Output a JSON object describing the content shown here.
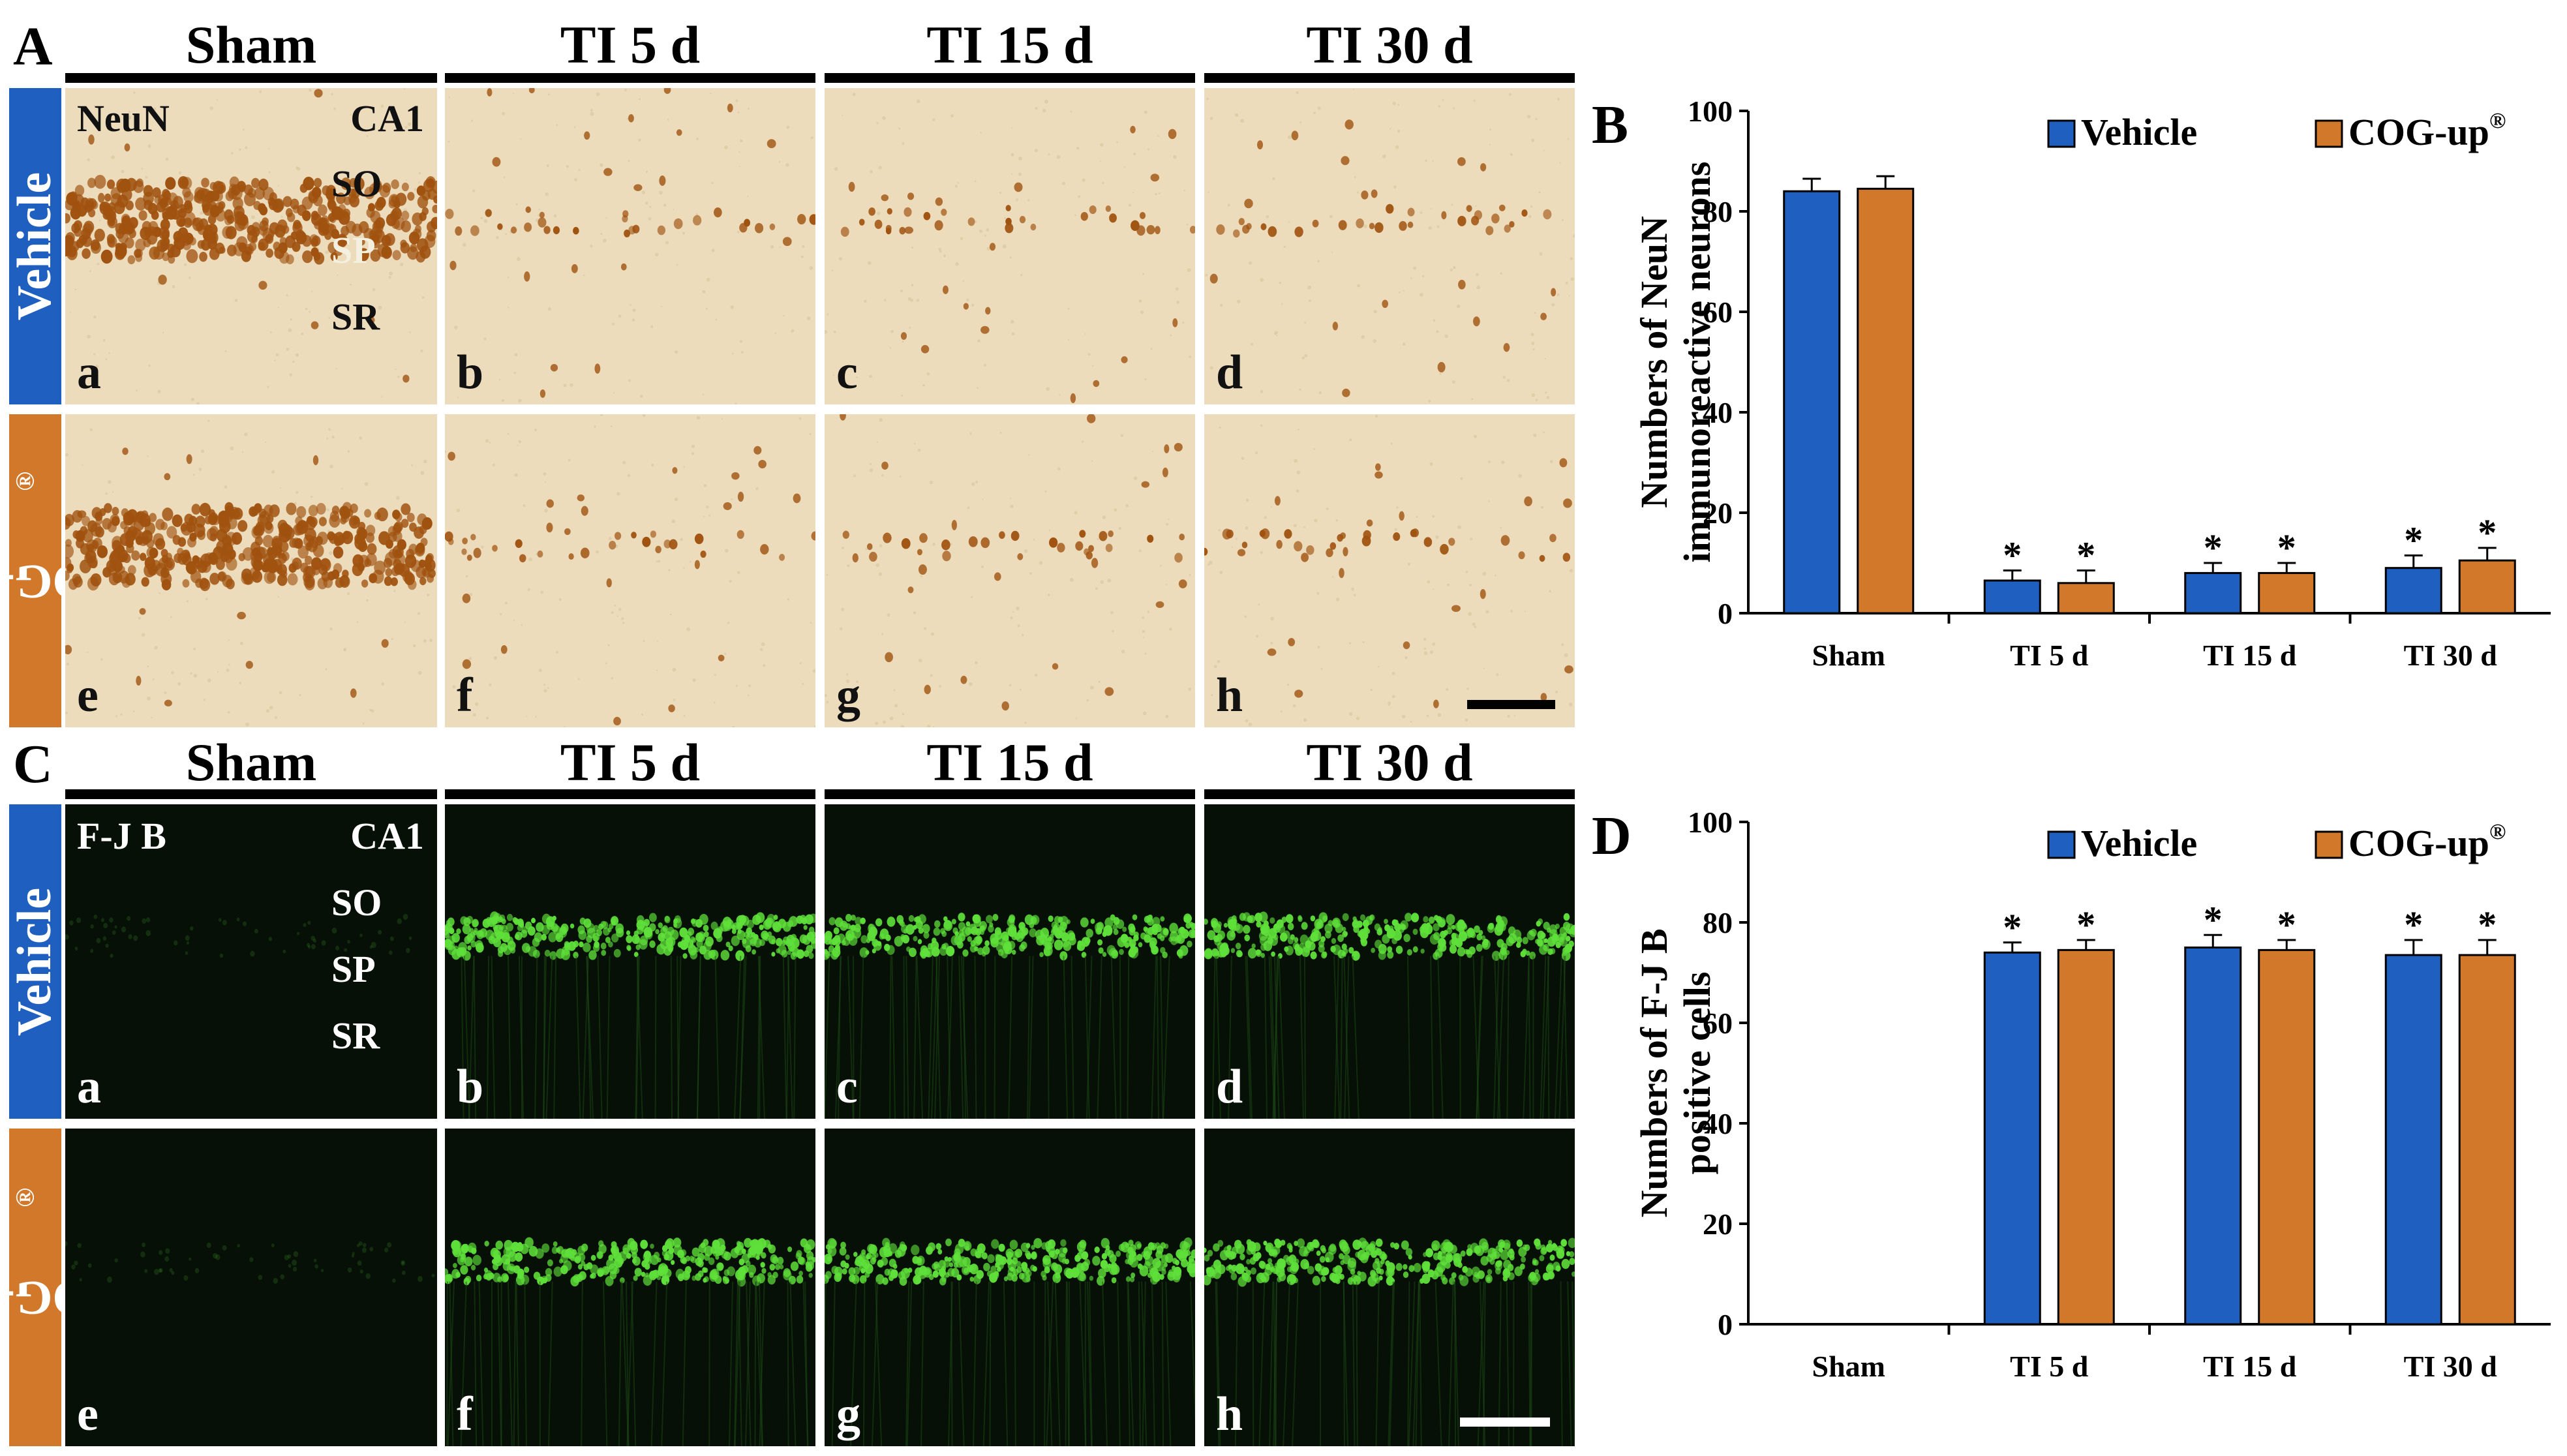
{
  "figure": {
    "panels": {
      "A": "A",
      "B": "B",
      "C": "C",
      "D": "D"
    },
    "column_headers": [
      "Sham",
      "TI 5 d",
      "TI 15 d",
      "TI 30 d"
    ],
    "row_labels": {
      "vehicle": "Vehicle",
      "cog": "COG-up",
      "cog_sup": "®"
    },
    "neun": {
      "stain": "NeuN",
      "region": "CA1",
      "layers": [
        "SO",
        "SP",
        "SR"
      ],
      "sublabels_top": [
        "a",
        "b",
        "c",
        "d"
      ],
      "sublabels_bottom": [
        "e",
        "f",
        "g",
        "h"
      ]
    },
    "fjb": {
      "stain": "F-J B",
      "region": "CA1",
      "layers": [
        "SO",
        "SP",
        "SR"
      ],
      "sublabels_top": [
        "a",
        "b",
        "c",
        "d"
      ],
      "sublabels_bottom": [
        "e",
        "f",
        "g",
        "h"
      ]
    },
    "colors": {
      "vehicle": "#1f5fbf",
      "cog": "#d2782a",
      "neun_bg": "#ecdcbc",
      "neun_cell": "#a0520f",
      "fjb_bg": "#061006",
      "fjb_cell": "#5fe03a"
    }
  },
  "chart_data": [
    {
      "panel": "B",
      "type": "bar",
      "ylabel": "Numbers of NeuN immunoreactive neurons",
      "ylabel_lines": [
        "Numbers of NeuN",
        "immunoreactive neurons"
      ],
      "categories": [
        "Sham",
        "TI 5 d",
        "TI 15 d",
        "TI 30 d"
      ],
      "ylim": [
        0,
        100
      ],
      "yticks": [
        "0",
        "20",
        "40",
        "60",
        "80",
        "100"
      ],
      "legend": [
        "Vehicle",
        "COG-up"
      ],
      "legend_sup": "®",
      "significance": "*",
      "series": [
        {
          "name": "Vehicle",
          "values": [
            84,
            6.5,
            8,
            9
          ],
          "errors": [
            2.5,
            2,
            2,
            2.5
          ],
          "sig": [
            false,
            true,
            true,
            true
          ]
        },
        {
          "name": "COG-up",
          "values": [
            84.5,
            6,
            8,
            10.5
          ],
          "errors": [
            2.5,
            2.5,
            2,
            2.5
          ],
          "sig": [
            false,
            true,
            true,
            true
          ]
        }
      ]
    },
    {
      "panel": "D",
      "type": "bar",
      "ylabel": "Numbers of F-J B positive cells",
      "ylabel_lines": [
        "Numbers of F-J B",
        "positive cells"
      ],
      "categories": [
        "Sham",
        "TI 5 d",
        "TI 15 d",
        "TI 30 d"
      ],
      "ylim": [
        0,
        100
      ],
      "yticks": [
        "0",
        "20",
        "40",
        "60",
        "80",
        "100"
      ],
      "legend": [
        "Vehicle",
        "COG-up"
      ],
      "legend_sup": "®",
      "significance": "*",
      "series": [
        {
          "name": "Vehicle",
          "values": [
            0,
            74,
            75,
            73.5
          ],
          "errors": [
            0,
            2,
            2.5,
            3
          ],
          "sig": [
            false,
            true,
            true,
            true
          ]
        },
        {
          "name": "COG-up",
          "values": [
            0,
            74.5,
            74.5,
            73.5
          ],
          "errors": [
            0,
            2,
            2,
            3
          ],
          "sig": [
            false,
            true,
            true,
            true
          ]
        }
      ]
    }
  ]
}
